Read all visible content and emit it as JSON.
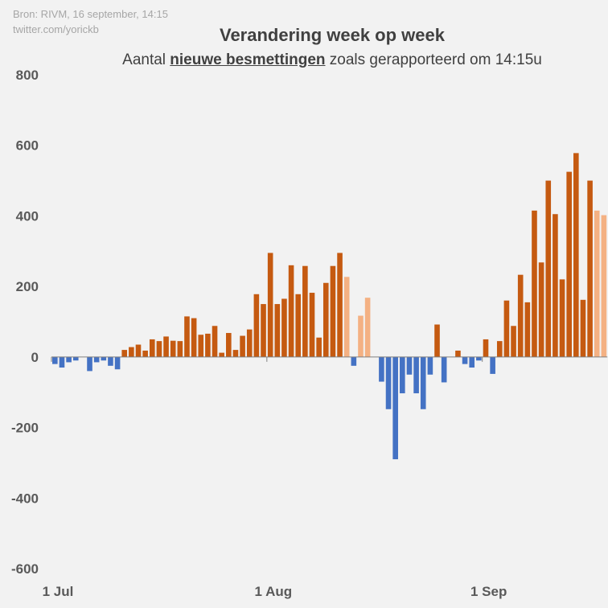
{
  "source": {
    "line1": "Bron: RIVM, 16 september, 14:15",
    "line2": "twitter.com/yorickb"
  },
  "title": "Verandering week op week",
  "subtitle": {
    "prefix": "Aantal ",
    "emphasis": "nieuwe besmettingen",
    "suffix": " zoals gerapporteerd om 14:15u"
  },
  "colors": {
    "positive": "#c55a11",
    "negative": "#4472c4",
    "preliminary": "#f4b183",
    "axis": "#7f7f7f",
    "background": "#f2f2f2"
  },
  "chart_data": {
    "type": "bar",
    "title": "Verandering week op week",
    "ylim": [
      -600,
      800
    ],
    "yticks": [
      800,
      600,
      400,
      200,
      0,
      -200,
      -400,
      -600
    ],
    "xtick_labels": [
      "1 Jul",
      "1 Aug",
      "1 Sep"
    ],
    "xtick_day_index": [
      0,
      31,
      62
    ],
    "grid": false,
    "start_date": "2020-07-01",
    "values": [
      -20,
      -30,
      -15,
      -10,
      0,
      -40,
      -15,
      -10,
      -25,
      -35,
      20,
      28,
      35,
      18,
      50,
      45,
      58,
      46,
      45,
      115,
      110,
      63,
      66,
      88,
      12,
      68,
      20,
      60,
      78,
      178,
      150,
      295,
      150,
      165,
      260,
      178,
      258,
      182,
      55,
      210,
      258,
      295,
      227,
      -25,
      117,
      168,
      0,
      -70,
      -148,
      -290,
      -103,
      -50,
      -103,
      -148,
      -50,
      92,
      -72,
      0,
      18,
      -20,
      -30,
      -10,
      50,
      -48,
      45,
      160,
      88,
      233,
      155,
      415,
      268,
      500,
      405,
      220,
      525,
      578,
      162,
      500,
      415,
      402
    ],
    "preliminary_index": [
      42,
      44,
      45,
      78,
      79
    ]
  }
}
